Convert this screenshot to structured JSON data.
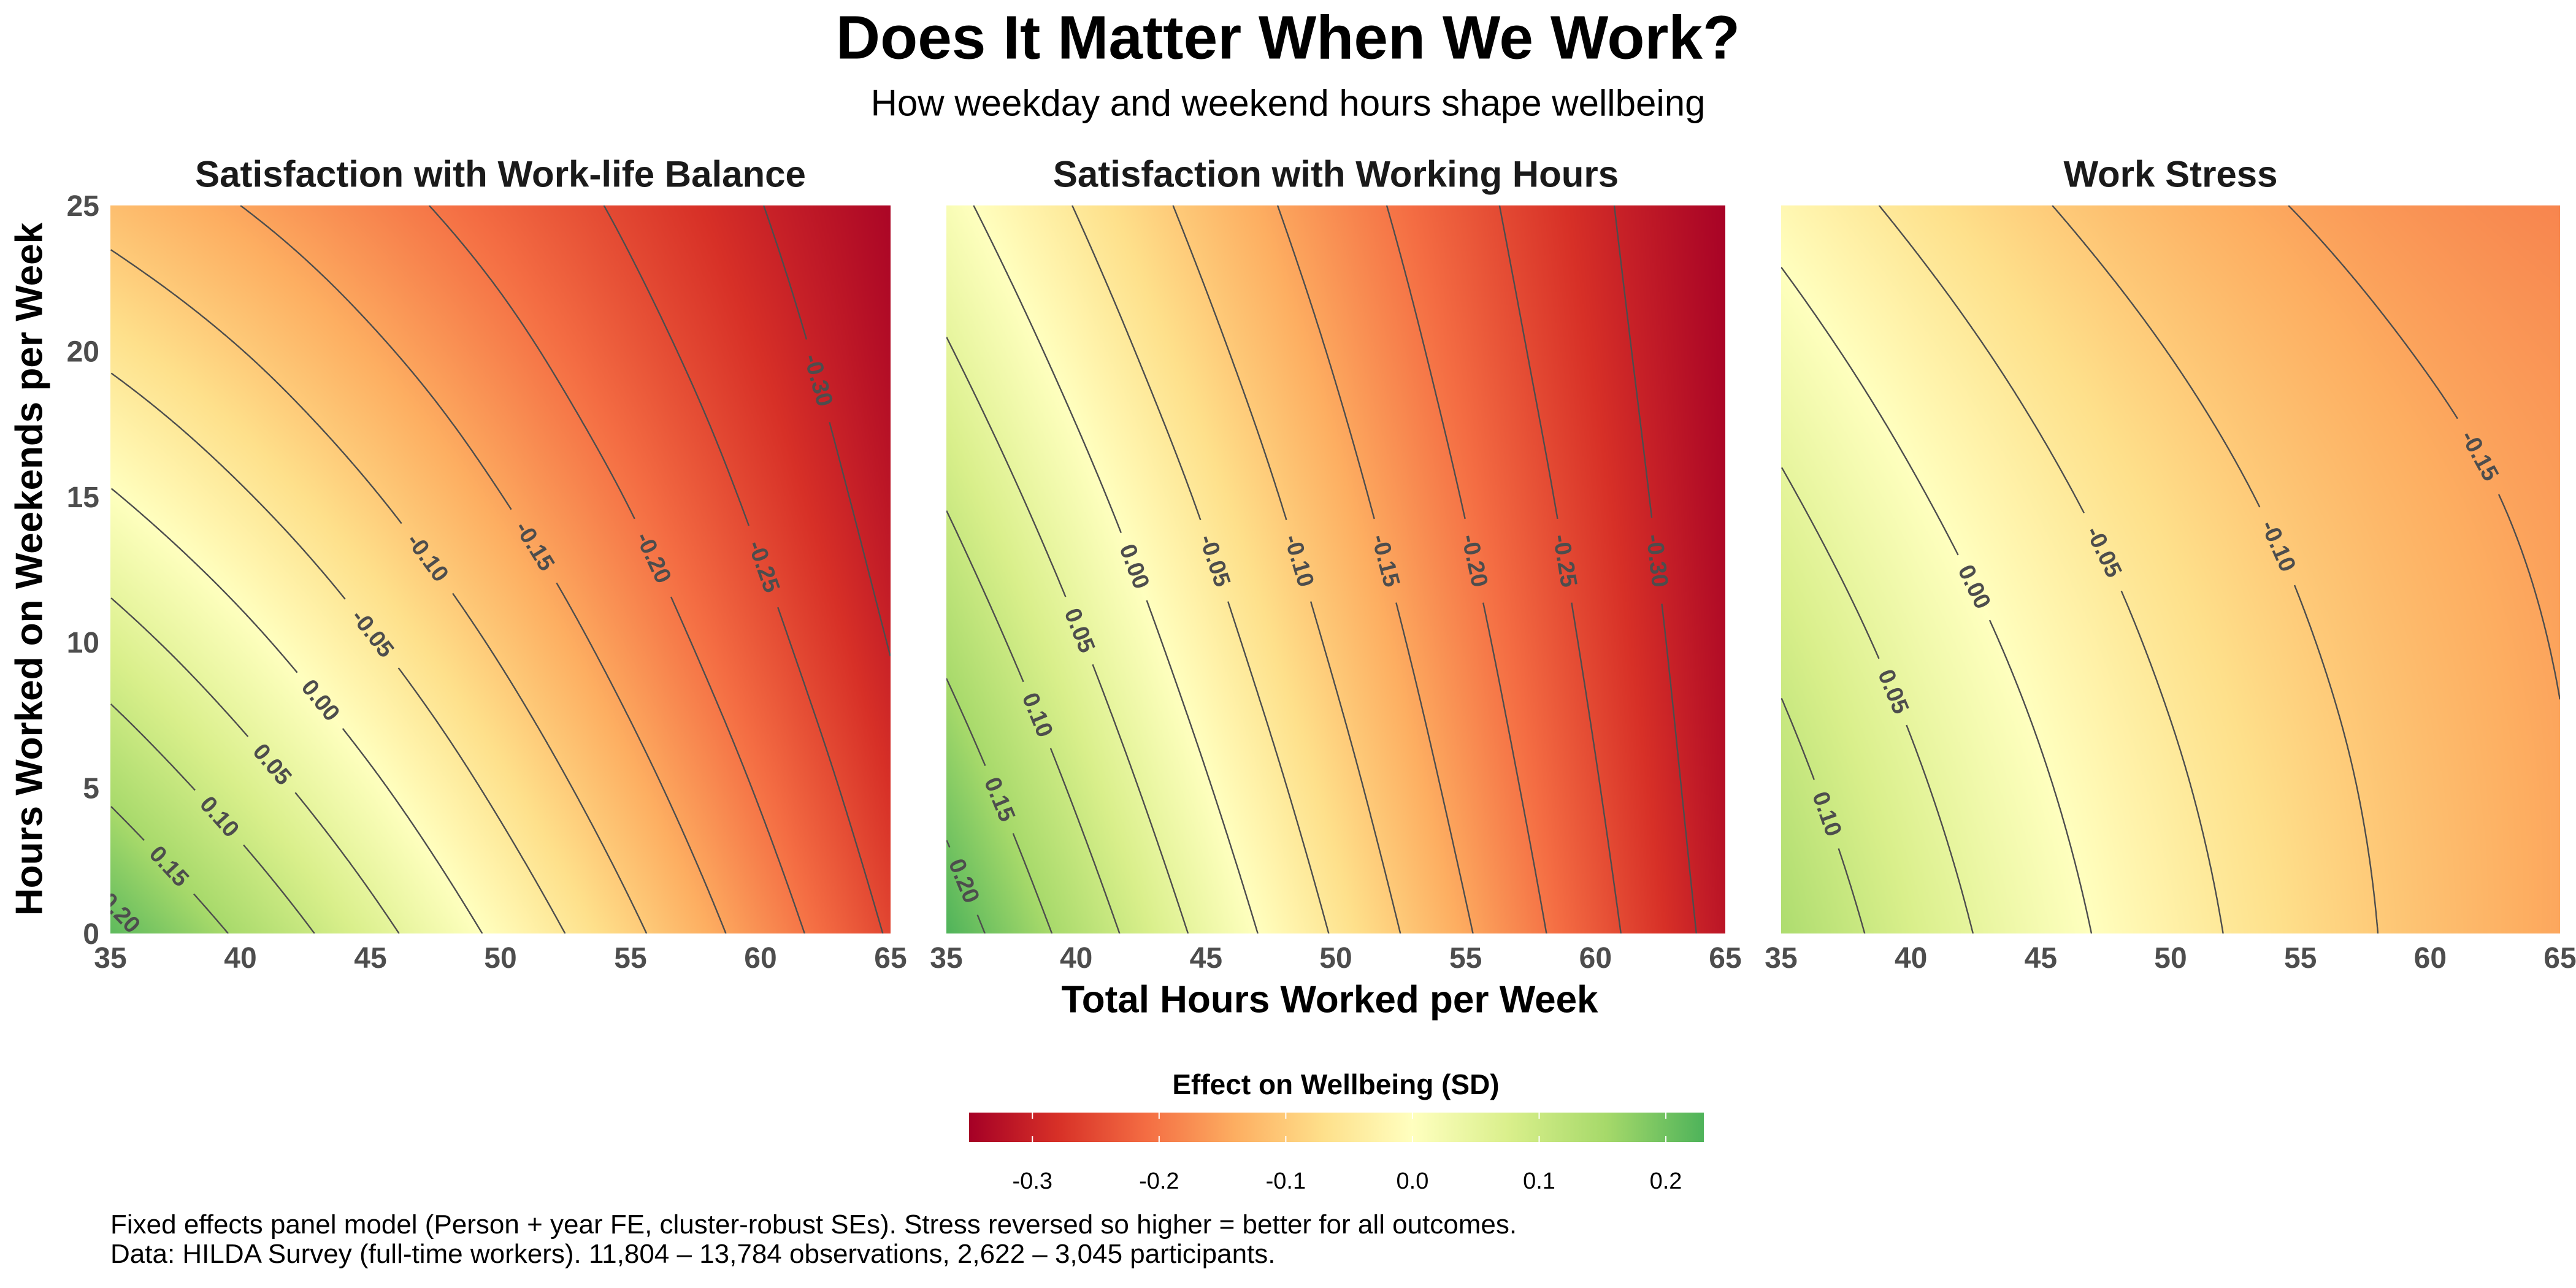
{
  "title": "Does It Matter When We Work?",
  "subtitle": "How weekday and weekend hours shape wellbeing",
  "x_axis_title": "Total Hours Worked per Week",
  "y_axis_title": "Hours Worked on Weekends per Week",
  "legend": {
    "title": "Effect on Wellbeing (SD)",
    "placement": "bottom",
    "breaks": [
      -0.3,
      -0.2,
      -0.1,
      0.0,
      0.1,
      0.2
    ],
    "tick_labels": [
      "-0.3",
      "-0.2",
      "-0.1",
      "0.0",
      "0.1",
      "0.2"
    ]
  },
  "color_scale": {
    "limits": [
      -0.35,
      0.23
    ],
    "midpoint": 0,
    "values": [
      -0.35,
      -0.28,
      -0.21,
      -0.14,
      -0.07,
      0,
      0.077,
      0.153,
      0.23
    ],
    "colors": [
      "#a50026",
      "#d73027",
      "#f46d43",
      "#fdae61",
      "#fee08b",
      "#ffffbf",
      "#d9ef8b",
      "#a6d96a",
      "#4eb35a"
    ],
    "contour_color": "#4d4d4d"
  },
  "caption": [
    "Fixed effects panel model (Person + year FE, cluster-robust SEs). Stress reversed so higher = better for all outcomes.",
    "Data: HILDA Survey (full-time workers). 11,804 – 13,784 observations, 2,622 – 3,045 participants."
  ],
  "chart_data": [
    {
      "type": "heatmap",
      "title": "Satisfaction with Work-life Balance",
      "xlabel": "Total Hours Worked per Week",
      "ylabel": "Hours Worked on Weekends per Week",
      "xlim": [
        35,
        65
      ],
      "ylim": [
        0,
        25
      ],
      "xticks": [
        "35",
        "40",
        "45",
        "50",
        "55",
        "60",
        "65"
      ],
      "yticks": [
        "0",
        "5",
        "10",
        "15",
        "20",
        "25"
      ],
      "x": [
        35,
        40,
        45,
        50,
        55,
        60,
        65
      ],
      "y": [
        0,
        5,
        10,
        15,
        20,
        25
      ],
      "z": [
        [
          0.216,
          0.143,
          0.067,
          -0.011,
          -0.09,
          -0.172,
          -0.255
        ],
        [
          0.141,
          0.076,
          0.009,
          -0.061,
          -0.132,
          -0.205,
          -0.28
        ],
        [
          0.071,
          0.014,
          -0.046,
          -0.107,
          -0.17,
          -0.235,
          -0.302
        ],
        [
          0.004,
          -0.045,
          -0.096,
          -0.149,
          -0.203,
          -0.26,
          -0.319
        ],
        [
          -0.059,
          -0.099,
          -0.142,
          -0.186,
          -0.233,
          -0.281,
          -0.332
        ],
        [
          -0.117,
          -0.15,
          -0.184,
          -0.22,
          -0.258,
          -0.299,
          -0.341
        ]
      ],
      "contour_levels": [
        0.2,
        0.15,
        0.1,
        0.05,
        0.0,
        -0.05,
        -0.1,
        -0.15,
        -0.2,
        -0.25,
        -0.3
      ],
      "contour_labels": [
        "0.20",
        "0.15",
        "0.10",
        "0.05",
        "0.00",
        "-0.05",
        "-0.10",
        "-0.15",
        "-0.20",
        "-0.25",
        "-0.30"
      ]
    },
    {
      "type": "heatmap",
      "title": "Satisfaction with Working Hours",
      "xlabel": "Total Hours Worked per Week",
      "ylabel": "",
      "xlim": [
        35,
        65
      ],
      "ylim": [
        0,
        25
      ],
      "xticks": [
        "35",
        "40",
        "45",
        "50",
        "55",
        "60",
        "65"
      ],
      "yticks": [],
      "x": [
        35,
        40,
        45,
        50,
        55,
        60,
        65
      ],
      "y": [
        0,
        5,
        10,
        15,
        20,
        25
      ],
      "z": [
        [
          0.229,
          0.132,
          0.037,
          -0.055,
          -0.145,
          -0.233,
          -0.319
        ],
        [
          0.184,
          0.093,
          0.004,
          -0.082,
          -0.166,
          -0.247,
          -0.327
        ],
        [
          0.139,
          0.055,
          -0.028,
          -0.108,
          -0.185,
          -0.26,
          -0.333
        ],
        [
          0.096,
          0.018,
          -0.058,
          -0.132,
          -0.203,
          -0.272,
          -0.339
        ],
        [
          0.054,
          -0.018,
          -0.088,
          -0.155,
          -0.22,
          -0.283,
          -0.343
        ],
        [
          0.014,
          -0.052,
          -0.116,
          -0.177,
          -0.235,
          -0.292,
          -0.346
        ]
      ],
      "contour_levels": [
        0.2,
        0.15,
        0.1,
        0.05,
        0.0,
        -0.05,
        -0.1,
        -0.15,
        -0.2,
        -0.25,
        -0.3
      ],
      "contour_labels": [
        "0.20",
        "0.15",
        "0.10",
        "0.05",
        "0.00",
        "-0.05",
        "-0.10",
        "-0.15",
        "-0.20",
        "-0.25",
        "-0.30"
      ]
    },
    {
      "type": "heatmap",
      "title": "Work Stress",
      "xlabel": "Total Hours Worked per Week",
      "ylabel": "",
      "xlim": [
        35,
        65
      ],
      "ylim": [
        0,
        25
      ],
      "xticks": [
        "35",
        "40",
        "45",
        "50",
        "55",
        "60",
        "65"
      ],
      "yticks": [],
      "x": [
        35,
        40,
        45,
        50,
        55,
        60,
        65
      ],
      "y": [
        0,
        5,
        10,
        15,
        20,
        25
      ],
      "z": [
        [
          0.142,
          0.078,
          0.021,
          -0.031,
          -0.076,
          -0.115,
          -0.148
        ],
        [
          0.117,
          0.058,
          0.005,
          -0.043,
          -0.084,
          -0.119,
          -0.148
        ],
        [
          0.089,
          0.034,
          -0.015,
          -0.059,
          -0.096,
          -0.127,
          -0.152
        ],
        [
          0.057,
          0.006,
          -0.039,
          -0.078,
          -0.111,
          -0.138,
          -0.159
        ],
        [
          0.022,
          -0.025,
          -0.066,
          -0.101,
          -0.13,
          -0.153,
          -0.169
        ],
        [
          -0.017,
          -0.06,
          -0.097,
          -0.128,
          -0.152,
          -0.171,
          -0.184
        ]
      ],
      "contour_levels": [
        0.1,
        0.05,
        0.0,
        -0.05,
        -0.1,
        -0.15
      ],
      "contour_labels": [
        "0.10",
        "0.05",
        "0.00",
        "-0.05",
        "-0.10",
        "-0.15"
      ]
    }
  ]
}
